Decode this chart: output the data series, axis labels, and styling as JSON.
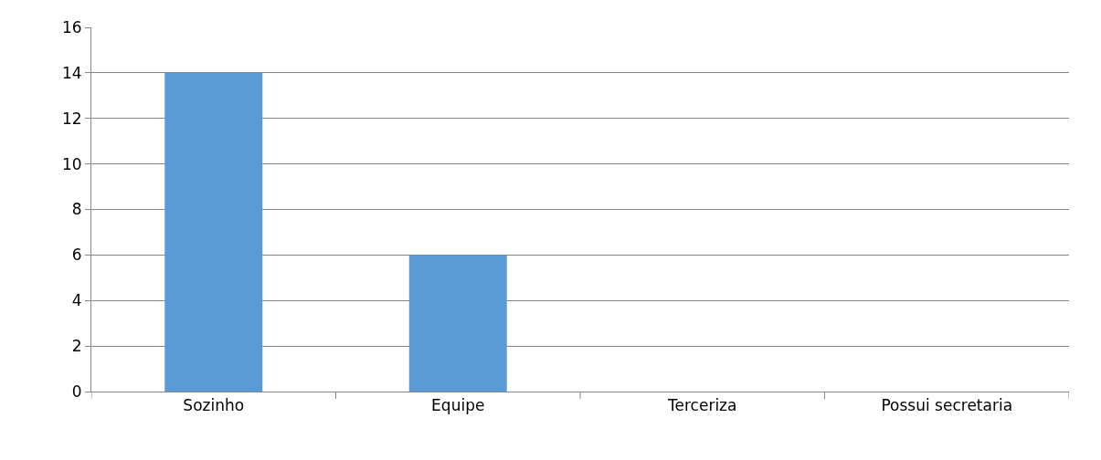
{
  "chart_data": {
    "type": "bar",
    "categories": [
      "Sozinho",
      "Equipe",
      "Terceriza",
      "Possui secretaria"
    ],
    "values": [
      14,
      6,
      0,
      0
    ],
    "color": "#5b9bd5",
    "ylim": [
      0,
      16
    ],
    "yticks": [
      0,
      2,
      4,
      6,
      8,
      10,
      12,
      14,
      16
    ],
    "grid": "y"
  }
}
